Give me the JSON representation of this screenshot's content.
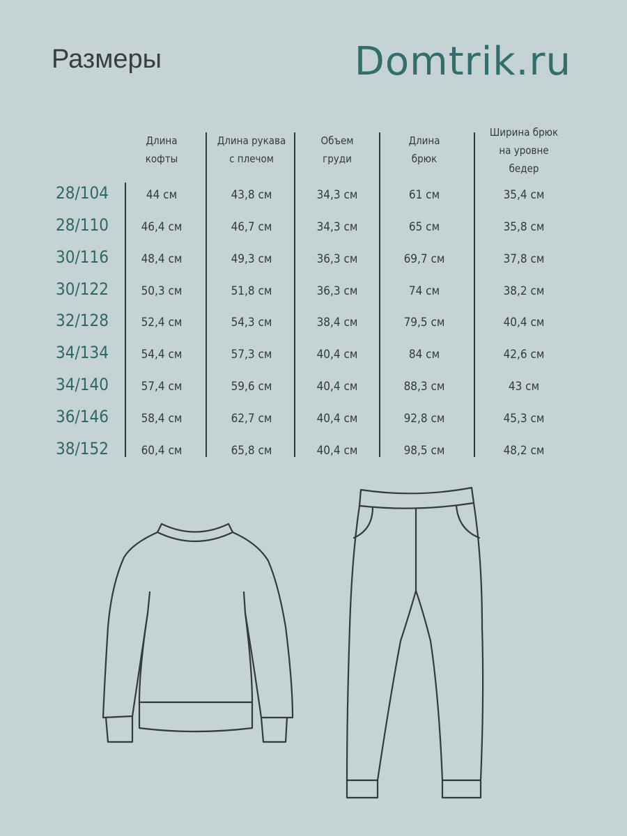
{
  "title": "Размеры",
  "brand": "Domtrik.ru",
  "table": {
    "headers": [
      [
        "Длина",
        "кофты"
      ],
      [
        "Длина рукава",
        "с плечом"
      ],
      [
        "Объем",
        "груди"
      ],
      [
        "Длина",
        "брюк"
      ],
      [
        "Ширина брюк",
        "на уровне",
        "бедер"
      ]
    ],
    "rows": [
      {
        "size": "28/104",
        "values": [
          "44 см",
          "43,8 см",
          "34,3 см",
          "61 см",
          "35,4 см"
        ]
      },
      {
        "size": "28/110",
        "values": [
          "46,4 см",
          "46,7 см",
          "34,3 см",
          "65 см",
          "35,8 см"
        ]
      },
      {
        "size": "30/116",
        "values": [
          "48,4 см",
          "49,3 см",
          "36,3 см",
          "69,7 см",
          "37,8 см"
        ]
      },
      {
        "size": "30/122",
        "values": [
          "50,3 см",
          "51,8 см",
          "36,3 см",
          "74 см",
          "38,2 см"
        ]
      },
      {
        "size": "32/128",
        "values": [
          "52,4 см",
          "54,3 см",
          "38,4 см",
          "79,5 см",
          "40,4 см"
        ]
      },
      {
        "size": "34/134",
        "values": [
          "54,4 см",
          "57,3 см",
          "40,4 см",
          "84 см",
          "42,6 см"
        ]
      },
      {
        "size": "34/140",
        "values": [
          "57,4 см",
          "59,6 см",
          "40,4 см",
          "88,3 см",
          "43 см"
        ]
      },
      {
        "size": "36/146",
        "values": [
          "58,4 см",
          "62,7 см",
          "40,4 см",
          "92,8 см",
          "45,3 см"
        ]
      },
      {
        "size": "38/152",
        "values": [
          "60,4 см",
          "65,8 см",
          "40,4 см",
          "98,5 см",
          "48,2 см"
        ]
      }
    ]
  },
  "colors": {
    "background": "#c6d3d5",
    "accent": "#336e6c",
    "text": "#333a3c"
  },
  "illustrations": [
    "sweatshirt-icon",
    "pants-icon"
  ]
}
